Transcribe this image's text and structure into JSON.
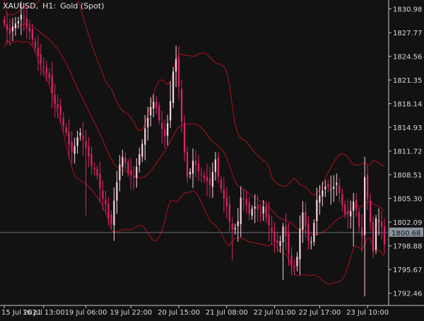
{
  "header": {
    "symbol": "XAUUSD,",
    "timeframe": "H1:",
    "description": "Gold (Spot)"
  },
  "colors": {
    "background": "#121212",
    "axis": "#c8c8c8",
    "bull_candle": "#ffd2dc",
    "bear_candle": "#e0226a",
    "wick": "#cfcfcf",
    "bands": "#b0101a",
    "price_line": "#6a6f78",
    "price_tag_bg": "#8a93a0",
    "price_tag_text": "#101010"
  },
  "chart_data": {
    "type": "candlestick",
    "symbol": "XAUUSD",
    "timeframe": "H1",
    "ylim": [
      1790.8,
      1831.9
    ],
    "y_ticks": [
      1830.98,
      1827.77,
      1824.56,
      1821.35,
      1818.14,
      1814.93,
      1811.72,
      1808.51,
      1805.3,
      1802.09,
      1798.88,
      1795.67,
      1792.46
    ],
    "x_ticks": [
      {
        "label": "15 Jul 2021",
        "index": 0
      },
      {
        "label": "16 Jul 13:00",
        "index": 14
      },
      {
        "label": "19 Jul 06:00",
        "index": 29
      },
      {
        "label": "19 Jul 22:00",
        "index": 45
      },
      {
        "label": "20 Jul 15:00",
        "index": 62
      },
      {
        "label": "21 Jul 08:00",
        "index": 79
      },
      {
        "label": "22 Jul 01:00",
        "index": 96
      },
      {
        "label": "22 Jul 17:00",
        "index": 112
      },
      {
        "label": "23 Jul 10:00",
        "index": 129
      }
    ],
    "current_price": 1800.68,
    "candles_close": [
      1829.0,
      1828.1,
      1827.6,
      1828.6,
      1829.0,
      1829.3,
      1830.2,
      1829.8,
      1828.4,
      1827.9,
      1826.8,
      1825.7,
      1824.6,
      1823.6,
      1823.2,
      1822.2,
      1821.6,
      1819.6,
      1818.1,
      1817.6,
      1816.6,
      1815.1,
      1814.2,
      1812.6,
      1811.6,
      1812.4,
      1813.6,
      1814.2,
      1813.2,
      1812.2,
      1811.0,
      1809.7,
      1809.3,
      1808.4,
      1806.7,
      1805.3,
      1804.5,
      1802.7,
      1801.9,
      1805.0,
      1807.5,
      1809.9,
      1810.9,
      1810.1,
      1808.8,
      1808.5,
      1808.1,
      1809.6,
      1811.3,
      1812.7,
      1814.8,
      1816.2,
      1817.7,
      1818.4,
      1817.6,
      1815.9,
      1814.7,
      1813.7,
      1815.5,
      1818.5,
      1822.5,
      1824.2,
      1820.5,
      1815.7,
      1811.5,
      1808.2,
      1808.9,
      1810.4,
      1809.8,
      1809.0,
      1808.5,
      1808.1,
      1807.7,
      1807.1,
      1808.9,
      1810.6,
      1808.2,
      1806.6,
      1805.3,
      1804.2,
      1802.1,
      1801.1,
      1801.3,
      1802.2,
      1805.4,
      1805.1,
      1804.4,
      1803.2,
      1803.9,
      1804.2,
      1803.8,
      1803.4,
      1804.2,
      1802.7,
      1801.6,
      1800.8,
      1799.4,
      1799.2,
      1799.5,
      1801.5,
      1800.2,
      1797.8,
      1796.2,
      1795.9,
      1797.4,
      1801.2,
      1803.4,
      1801.5,
      1799.5,
      1799.4,
      1802.0,
      1805.1,
      1805.7,
      1806.4,
      1806.9,
      1806.8,
      1806.6,
      1806.9,
      1807.4,
      1806.0,
      1804.4,
      1803.2,
      1803.1,
      1803.6,
      1804.9,
      1803.8,
      1801.5,
      1800.2,
      1808.2,
      1805.2,
      1802.1,
      1798.1,
      1802.6,
      1802.3,
      1801.4,
      1799.1
    ]
  }
}
